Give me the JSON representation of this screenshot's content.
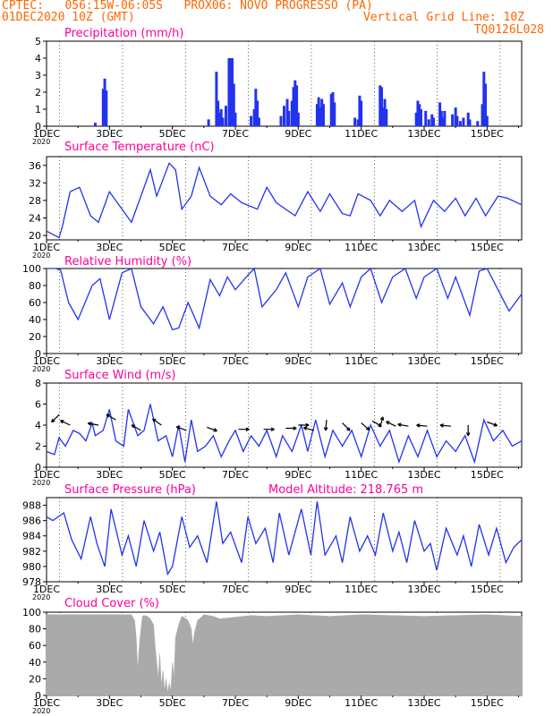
{
  "header": {
    "title": "CPTEC:   056:15W-06:05S   PROX06: NOVO PROGRESSO (PA)",
    "date": "01DEC2020 10Z (GMT)",
    "grid_line": "Vertical Grid Line: 10Z",
    "code": "TQ0126L028"
  },
  "colors": {
    "header": "#ff6600",
    "panel_title": "#ff0099",
    "series": "#2233ee",
    "bars": "#2233ee",
    "cloud": "#aaaaaa",
    "wind_arrow": "#000000"
  },
  "x_axis": {
    "ticks": [
      1,
      3,
      5,
      7,
      9,
      11,
      13,
      15
    ],
    "labels": [
      "1DEC",
      "3DEC",
      "5DEC",
      "7DEC",
      "9DEC",
      "11DEC",
      "13DEC",
      "15DEC"
    ],
    "year_label": "2020",
    "range_days": [
      1,
      16.1
    ]
  },
  "chart_data": [
    {
      "type": "bar",
      "title": "Precipitation (mm/h)",
      "ylim": [
        0,
        5
      ],
      "yticks": [
        0,
        1,
        2,
        3,
        4,
        5
      ],
      "bars": [
        [
          2.55,
          0.2
        ],
        [
          2.8,
          2.2
        ],
        [
          2.85,
          2.8
        ],
        [
          2.9,
          2.1
        ],
        [
          6.15,
          0.4
        ],
        [
          6.4,
          3.2
        ],
        [
          6.45,
          1.5
        ],
        [
          6.5,
          0.8
        ],
        [
          6.55,
          1.0
        ],
        [
          6.6,
          0.5
        ],
        [
          6.7,
          1.2
        ],
        [
          6.8,
          4.0
        ],
        [
          6.85,
          4.0
        ],
        [
          6.9,
          4.0
        ],
        [
          6.95,
          2.5
        ],
        [
          7.0,
          0.8
        ],
        [
          7.5,
          0.6
        ],
        [
          7.6,
          1.0
        ],
        [
          7.65,
          2.2
        ],
        [
          7.7,
          1.5
        ],
        [
          7.75,
          0.5
        ],
        [
          8.45,
          0.6
        ],
        [
          8.55,
          1.2
        ],
        [
          8.65,
          1.6
        ],
        [
          8.7,
          0.9
        ],
        [
          8.8,
          1.5
        ],
        [
          8.85,
          2.3
        ],
        [
          8.9,
          2.7
        ],
        [
          8.95,
          2.4
        ],
        [
          9.0,
          0.8
        ],
        [
          9.6,
          1.3
        ],
        [
          9.65,
          1.7
        ],
        [
          9.7,
          1.1
        ],
        [
          9.75,
          1.6
        ],
        [
          9.8,
          1.3
        ],
        [
          10.05,
          1.9
        ],
        [
          10.1,
          2.0
        ],
        [
          10.15,
          1.4
        ],
        [
          10.8,
          0.5
        ],
        [
          10.9,
          0.4
        ],
        [
          10.95,
          1.8
        ],
        [
          11.0,
          1.5
        ],
        [
          11.6,
          2.4
        ],
        [
          11.65,
          2.3
        ],
        [
          11.7,
          1.1
        ],
        [
          11.75,
          1.6
        ],
        [
          11.8,
          1.0
        ],
        [
          12.75,
          0.8
        ],
        [
          12.8,
          1.5
        ],
        [
          12.85,
          1.3
        ],
        [
          12.9,
          1.0
        ],
        [
          13.05,
          0.9
        ],
        [
          13.15,
          0.4
        ],
        [
          13.25,
          0.7
        ],
        [
          13.3,
          0.5
        ],
        [
          13.5,
          1.4
        ],
        [
          13.55,
          0.9
        ],
        [
          13.6,
          0.5
        ],
        [
          13.65,
          0.9
        ],
        [
          13.9,
          0.7
        ],
        [
          14.0,
          1.1
        ],
        [
          14.05,
          0.6
        ],
        [
          14.15,
          0.3
        ],
        [
          14.25,
          0.5
        ],
        [
          14.4,
          0.8
        ],
        [
          14.45,
          0.4
        ],
        [
          14.7,
          0.3
        ],
        [
          14.85,
          1.3
        ],
        [
          14.9,
          3.2
        ],
        [
          14.95,
          2.5
        ],
        [
          15.0,
          0.6
        ]
      ]
    },
    {
      "type": "line",
      "title": "Surface Temperature (nC)",
      "ylim": [
        19,
        38
      ],
      "yticks": [
        20,
        24,
        28,
        32,
        36
      ],
      "x": [
        1.0,
        1.4,
        1.5,
        1.75,
        2.05,
        2.4,
        2.65,
        3.0,
        3.4,
        3.7,
        4.0,
        4.3,
        4.5,
        4.9,
        5.1,
        5.3,
        5.6,
        5.85,
        6.2,
        6.55,
        6.85,
        7.2,
        7.7,
        8.0,
        8.3,
        8.9,
        9.3,
        9.7,
        10.0,
        10.4,
        10.65,
        10.9,
        11.3,
        11.6,
        11.9,
        12.3,
        12.7,
        12.9,
        13.3,
        13.65,
        14.0,
        14.3,
        14.65,
        14.95,
        15.35,
        15.65,
        16.1
      ],
      "y": [
        21.0,
        19.5,
        22.0,
        30.0,
        31.0,
        24.5,
        23.0,
        30.0,
        26.0,
        23.0,
        29.0,
        35.0,
        29.0,
        36.5,
        35.0,
        26.0,
        29.0,
        35.5,
        29.0,
        27.0,
        29.5,
        27.5,
        26.0,
        31.0,
        27.5,
        24.5,
        30.0,
        25.5,
        29.5,
        25.0,
        24.5,
        29.5,
        28.0,
        24.5,
        28.0,
        25.5,
        28.0,
        22.0,
        28.0,
        25.5,
        28.5,
        24.5,
        28.5,
        24.5,
        29.0,
        28.5,
        27.0
      ]
    },
    {
      "type": "line",
      "title": "Relative Humidity (%)",
      "ylim": [
        0,
        100
      ],
      "yticks": [
        0,
        20,
        40,
        60,
        80,
        100
      ],
      "x": [
        1.0,
        1.3,
        1.45,
        1.7,
        2.0,
        2.45,
        2.7,
        3.0,
        3.4,
        3.7,
        4.0,
        4.4,
        4.7,
        5.0,
        5.2,
        5.5,
        5.85,
        6.2,
        6.5,
        6.75,
        7.0,
        7.3,
        7.6,
        7.85,
        8.3,
        8.6,
        9.0,
        9.3,
        9.7,
        10.0,
        10.4,
        10.65,
        11.0,
        11.3,
        11.65,
        12.0,
        12.4,
        12.75,
        13.0,
        13.4,
        13.75,
        14.0,
        14.45,
        14.75,
        15.0,
        15.35,
        15.7,
        16.1
      ],
      "y": [
        100.0,
        100.0,
        98.0,
        60.0,
        40.0,
        80.0,
        88.0,
        40.0,
        95.0,
        100.0,
        55.0,
        35.0,
        55.0,
        28.0,
        30.0,
        60.0,
        30.0,
        87.0,
        68.0,
        90.0,
        75.0,
        88.0,
        100.0,
        55.0,
        75.0,
        95.0,
        55.0,
        90.0,
        100.0,
        58.0,
        83.0,
        55.0,
        90.0,
        100.0,
        60.0,
        90.0,
        100.0,
        65.0,
        90.0,
        100.0,
        65.0,
        90.0,
        45.0,
        97.0,
        100.0,
        75.0,
        50.0,
        70.0
      ]
    },
    {
      "type": "line",
      "title": "Surface Wind (m/s)",
      "ylim": [
        0,
        8
      ],
      "yticks": [
        0,
        2,
        4,
        6,
        8
      ],
      "x": [
        1.0,
        1.25,
        1.4,
        1.6,
        1.85,
        2.05,
        2.25,
        2.45,
        2.55,
        2.8,
        3.0,
        3.2,
        3.45,
        3.6,
        3.9,
        4.1,
        4.3,
        4.55,
        4.8,
        5.0,
        5.2,
        5.4,
        5.6,
        5.8,
        6.05,
        6.3,
        6.55,
        6.8,
        7.0,
        7.25,
        7.5,
        7.75,
        8.0,
        8.3,
        8.5,
        8.8,
        9.1,
        9.3,
        9.55,
        9.85,
        10.1,
        10.4,
        10.7,
        11.0,
        11.3,
        11.6,
        11.9,
        12.2,
        12.5,
        12.8,
        13.1,
        13.4,
        13.7,
        14.0,
        14.3,
        14.6,
        14.9,
        15.2,
        15.5,
        15.8,
        16.1
      ],
      "y": [
        1.5,
        1.2,
        2.8,
        2.0,
        3.5,
        3.2,
        2.5,
        4.2,
        3.0,
        3.5,
        5.5,
        2.5,
        2.0,
        5.5,
        3.0,
        3.5,
        6.0,
        2.5,
        3.0,
        1.0,
        4.0,
        0.5,
        4.5,
        1.5,
        2.0,
        3.0,
        1.0,
        2.5,
        3.5,
        1.5,
        3.0,
        2.0,
        3.5,
        1.0,
        3.0,
        1.5,
        4.0,
        1.5,
        4.5,
        1.0,
        3.5,
        2.0,
        3.5,
        1.0,
        4.0,
        2.0,
        3.5,
        0.5,
        3.0,
        1.0,
        3.5,
        1.0,
        2.5,
        1.5,
        3.0,
        0.5,
        4.5,
        2.5,
        3.5,
        2.0,
        2.5
      ],
      "arrows": [
        [
          1.4,
          5.0,
          -135
        ],
        [
          1.75,
          4.0,
          155
        ],
        [
          2.65,
          4.0,
          170
        ],
        [
          3.2,
          4.5,
          150
        ],
        [
          4.0,
          3.5,
          150
        ],
        [
          4.65,
          4.0,
          145
        ],
        [
          5.45,
          3.5,
          160
        ],
        [
          6.1,
          3.8,
          -20
        ],
        [
          7.1,
          3.6,
          0
        ],
        [
          7.9,
          3.6,
          0
        ],
        [
          8.6,
          3.7,
          0
        ],
        [
          9.0,
          4.0,
          0
        ],
        [
          9.5,
          3.5,
          165
        ],
        [
          9.9,
          4.5,
          -95
        ],
        [
          10.4,
          4.2,
          -45
        ],
        [
          11.0,
          4.2,
          -40
        ],
        [
          11.35,
          4.4,
          -30
        ],
        [
          11.6,
          3.8,
          75
        ],
        [
          12.1,
          3.9,
          155
        ],
        [
          12.5,
          3.9,
          170
        ],
        [
          13.1,
          3.9,
          175
        ],
        [
          13.85,
          3.9,
          175
        ],
        [
          14.4,
          4.0,
          -90
        ],
        [
          15.0,
          4.3,
          -20
        ]
      ]
    },
    {
      "type": "line",
      "title": "Surface Pressure (hPa)",
      "subtitle": "Model Altitude: 218.765 m",
      "ylim": [
        978,
        989
      ],
      "yticks": [
        978,
        980,
        982,
        984,
        986,
        988
      ],
      "x": [
        1.0,
        1.2,
        1.55,
        1.8,
        2.1,
        2.4,
        2.6,
        2.85,
        3.05,
        3.4,
        3.6,
        3.85,
        4.1,
        4.4,
        4.6,
        4.85,
        5.0,
        5.3,
        5.55,
        5.8,
        6.1,
        6.4,
        6.6,
        6.85,
        7.2,
        7.4,
        7.65,
        7.95,
        8.2,
        8.4,
        8.7,
        9.1,
        9.4,
        9.6,
        9.85,
        10.2,
        10.4,
        10.65,
        10.95,
        11.2,
        11.45,
        11.7,
        12.0,
        12.2,
        12.45,
        12.7,
        13.0,
        13.2,
        13.4,
        13.7,
        14.05,
        14.25,
        14.5,
        14.75,
        15.05,
        15.3,
        15.6,
        15.85,
        16.1
      ],
      "y": [
        986.5,
        986.0,
        987.0,
        983.5,
        981.0,
        986.5,
        983.0,
        980.0,
        987.5,
        981.5,
        984.0,
        980.0,
        986.0,
        982.0,
        984.5,
        979.0,
        980.0,
        986.5,
        982.5,
        984.0,
        980.5,
        988.5,
        983.0,
        984.5,
        980.5,
        986.5,
        983.0,
        985.0,
        980.5,
        987.0,
        981.5,
        987.5,
        981.5,
        988.5,
        981.5,
        984.0,
        980.5,
        986.5,
        982.0,
        984.0,
        981.5,
        987.0,
        982.0,
        984.5,
        980.5,
        986.0,
        982.0,
        983.0,
        979.5,
        985.0,
        981.5,
        984.0,
        980.0,
        985.5,
        981.5,
        985.0,
        980.5,
        982.5,
        983.5
      ]
    },
    {
      "type": "area",
      "title": "Cloud Cover (%)",
      "ylim": [
        0,
        100
      ],
      "yticks": [
        0,
        20,
        40,
        60,
        80,
        100
      ],
      "x": [
        1.0,
        3.7,
        3.8,
        3.85,
        3.9,
        3.95,
        4.0,
        4.05,
        4.1,
        4.2,
        4.3,
        4.4,
        4.45,
        4.5,
        4.55,
        4.6,
        4.65,
        4.7,
        4.75,
        4.8,
        4.85,
        4.9,
        4.95,
        5.0,
        5.05,
        5.1,
        5.2,
        5.3,
        5.4,
        5.5,
        5.6,
        5.65,
        5.7,
        5.8,
        6.0,
        6.3,
        6.5,
        7.0,
        7.5,
        8.0,
        8.5,
        9.0,
        9.5,
        10.0,
        11.0,
        12.0,
        13.0,
        14.0,
        15.0,
        16.1
      ],
      "y": [
        97.0,
        97.0,
        90.0,
        70.0,
        30.0,
        60.0,
        80.0,
        95.0,
        96.0,
        95.0,
        92.0,
        85.0,
        60.0,
        40.0,
        20.0,
        50.0,
        10.0,
        30.0,
        5.0,
        20.0,
        2.0,
        15.0,
        5.0,
        40.0,
        20.0,
        70.0,
        85.0,
        95.0,
        93.0,
        90.0,
        80.0,
        60.0,
        75.0,
        90.0,
        97.0,
        95.0,
        92.0,
        94.0,
        96.0,
        95.0,
        96.0,
        97.0,
        96.0,
        95.0,
        97.0,
        96.0,
        95.0,
        96.0,
        97.0,
        95.0
      ]
    }
  ]
}
